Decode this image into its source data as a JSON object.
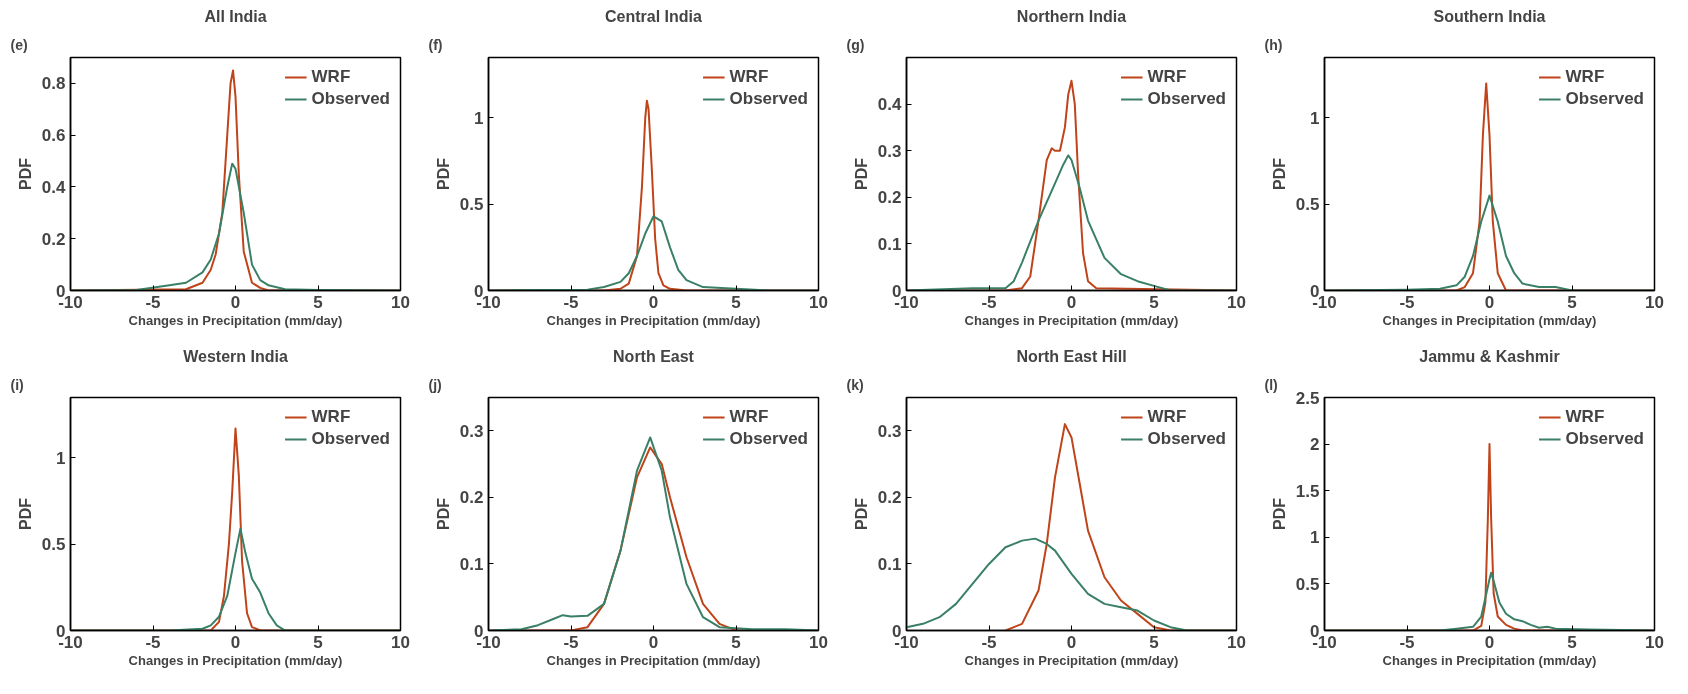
{
  "chart_data": [
    {
      "type": "line",
      "title": "All India",
      "xlabel": "Changes in Precipitation (mm/day)",
      "ylabel": "PDF",
      "annotations": [
        "(e)"
      ],
      "xlim": [
        -10,
        10
      ],
      "xticks": [
        -10,
        -5,
        0,
        5,
        10
      ],
      "ylim": [
        0,
        0.9
      ],
      "yticks": [
        0,
        0.2,
        0.4,
        0.6,
        0.8
      ],
      "grid": false,
      "legend": "top right",
      "series": [
        {
          "name": "WRF",
          "color": "#c0441a",
          "x": [
            -10,
            -3,
            -2,
            -1.5,
            -1.2,
            -0.8,
            -0.5,
            -0.3,
            -0.15,
            0,
            0.2,
            0.5,
            1,
            1.5,
            2,
            3,
            10
          ],
          "values": [
            0,
            0.005,
            0.03,
            0.08,
            0.14,
            0.3,
            0.6,
            0.8,
            0.85,
            0.75,
            0.45,
            0.15,
            0.03,
            0.01,
            0,
            0,
            0
          ]
        },
        {
          "name": "Observed",
          "color": "#3a8066",
          "x": [
            -10,
            -6,
            -4,
            -3,
            -2,
            -1.5,
            -1,
            -0.5,
            -0.2,
            0,
            0.5,
            1,
            1.5,
            2,
            3,
            5,
            10
          ],
          "values": [
            0,
            0.002,
            0.02,
            0.03,
            0.07,
            0.12,
            0.22,
            0.4,
            0.49,
            0.47,
            0.3,
            0.1,
            0.04,
            0.02,
            0.005,
            0.002,
            0
          ]
        }
      ]
    },
    {
      "type": "line",
      "title": "Central India",
      "xlabel": "Changes in Precipitation (mm/day)",
      "ylabel": "PDF",
      "annotations": [
        "(f)"
      ],
      "xlim": [
        -10,
        10
      ],
      "xticks": [
        -10,
        -5,
        0,
        5,
        10
      ],
      "ylim": [
        0,
        1.35
      ],
      "yticks": [
        0,
        0.5,
        1
      ],
      "grid": false,
      "legend": "top right",
      "series": [
        {
          "name": "WRF",
          "color": "#c0441a",
          "x": [
            -10,
            -3,
            -2,
            -1.5,
            -1,
            -0.7,
            -0.5,
            -0.4,
            -0.3,
            -0.1,
            0.1,
            0.3,
            0.6,
            1,
            2,
            10
          ],
          "values": [
            0,
            0,
            0.01,
            0.04,
            0.2,
            0.6,
            1.0,
            1.1,
            1.05,
            0.7,
            0.3,
            0.1,
            0.03,
            0.01,
            0,
            0
          ]
        },
        {
          "name": "Observed",
          "color": "#3a8066",
          "x": [
            -10,
            -4,
            -3,
            -2,
            -1.5,
            -1,
            -0.5,
            0,
            0.5,
            1,
            1.5,
            2,
            3,
            5,
            7,
            10
          ],
          "values": [
            0,
            0.005,
            0.02,
            0.05,
            0.1,
            0.2,
            0.33,
            0.43,
            0.4,
            0.25,
            0.12,
            0.06,
            0.02,
            0.01,
            0,
            0
          ]
        }
      ]
    },
    {
      "type": "line",
      "title": "Northern India",
      "xlabel": "Changes in Precipitation (mm/day)",
      "ylabel": "PDF",
      "annotations": [
        "(g)"
      ],
      "xlim": [
        -10,
        10
      ],
      "xticks": [
        -10,
        -5,
        0,
        5,
        10
      ],
      "ylim": [
        0,
        0.5
      ],
      "yticks": [
        0,
        0.1,
        0.2,
        0.3,
        0.4
      ],
      "grid": false,
      "legend": "top right",
      "series": [
        {
          "name": "WRF",
          "color": "#c0441a",
          "x": [
            -10,
            -4,
            -3,
            -2.5,
            -2,
            -1.5,
            -1.2,
            -1,
            -0.7,
            -0.4,
            -0.2,
            0,
            0.2,
            0.4,
            0.7,
            1,
            1.5,
            10
          ],
          "values": [
            0,
            0,
            0.005,
            0.03,
            0.15,
            0.28,
            0.305,
            0.3,
            0.3,
            0.35,
            0.42,
            0.45,
            0.4,
            0.25,
            0.08,
            0.02,
            0.005,
            0
          ]
        },
        {
          "name": "Observed",
          "color": "#3a8066",
          "x": [
            -10,
            -6,
            -4,
            -3.5,
            -3,
            -2,
            -1,
            -0.5,
            -0.2,
            0,
            0.5,
            1,
            2,
            3,
            4,
            5,
            6,
            10
          ],
          "values": [
            0,
            0.005,
            0.005,
            0.02,
            0.06,
            0.15,
            0.23,
            0.27,
            0.29,
            0.28,
            0.22,
            0.15,
            0.07,
            0.035,
            0.02,
            0.01,
            0,
            0
          ]
        }
      ]
    },
    {
      "type": "line",
      "title": "Southern India",
      "xlabel": "Changes in Precipitation (mm/day)",
      "ylabel": "PDF",
      "annotations": [
        "(h)"
      ],
      "xlim": [
        -10,
        10
      ],
      "xticks": [
        -10,
        -5,
        0,
        5,
        10
      ],
      "ylim": [
        0,
        1.35
      ],
      "yticks": [
        0,
        0.5,
        1
      ],
      "grid": false,
      "legend": "top right",
      "series": [
        {
          "name": "WRF",
          "color": "#c0441a",
          "x": [
            -10,
            -2,
            -1.5,
            -1,
            -0.6,
            -0.4,
            -0.2,
            0,
            0.2,
            0.5,
            1,
            10
          ],
          "values": [
            0,
            0,
            0.02,
            0.1,
            0.4,
            0.9,
            1.2,
            0.9,
            0.4,
            0.1,
            0,
            0
          ]
        },
        {
          "name": "Observed",
          "color": "#3a8066",
          "x": [
            -10,
            -5,
            -3,
            -2,
            -1.5,
            -1,
            -0.5,
            0,
            0.5,
            1,
            1.5,
            2,
            3,
            4,
            5,
            10
          ],
          "values": [
            0,
            0.005,
            0.01,
            0.03,
            0.08,
            0.2,
            0.4,
            0.55,
            0.4,
            0.2,
            0.1,
            0.04,
            0.02,
            0.02,
            0,
            0
          ]
        }
      ]
    },
    {
      "type": "line",
      "title": "Western India",
      "xlabel": "Changes in Precipitation (mm/day)",
      "ylabel": "PDF",
      "annotations": [
        "(i)"
      ],
      "xlim": [
        -10,
        10
      ],
      "xticks": [
        -10,
        -5,
        0,
        5,
        10
      ],
      "ylim": [
        0,
        1.35
      ],
      "yticks": [
        0,
        0.5,
        1
      ],
      "grid": false,
      "legend": "top right",
      "series": [
        {
          "name": "WRF",
          "color": "#c0441a",
          "x": [
            -10,
            -1.5,
            -1,
            -0.7,
            -0.4,
            -0.2,
            0,
            0.2,
            0.4,
            0.7,
            1,
            1.5,
            10
          ],
          "values": [
            0,
            0,
            0.05,
            0.2,
            0.5,
            0.8,
            1.17,
            0.9,
            0.4,
            0.1,
            0.02,
            0,
            0
          ]
        },
        {
          "name": "Observed",
          "color": "#3a8066",
          "x": [
            -10,
            -4,
            -2,
            -1.5,
            -1,
            -0.5,
            0,
            0.3,
            0.6,
            1,
            1.5,
            2,
            2.5,
            3,
            10
          ],
          "values": [
            0,
            0,
            0.01,
            0.03,
            0.08,
            0.2,
            0.45,
            0.59,
            0.45,
            0.3,
            0.22,
            0.1,
            0.03,
            0,
            0
          ]
        }
      ]
    },
    {
      "type": "line",
      "title": "North East",
      "xlabel": "Changes in Precipitation (mm/day)",
      "ylabel": "PDF",
      "annotations": [
        "(j)"
      ],
      "xlim": [
        -10,
        10
      ],
      "xticks": [
        -10,
        -5,
        0,
        5,
        10
      ],
      "ylim": [
        0,
        0.35
      ],
      "yticks": [
        0,
        0.1,
        0.2,
        0.3
      ],
      "grid": false,
      "legend": "top right",
      "series": [
        {
          "name": "WRF",
          "color": "#c0441a",
          "x": [
            -10,
            -5,
            -4,
            -3,
            -2,
            -1,
            -0.2,
            0.5,
            1,
            2,
            3,
            4,
            5,
            10
          ],
          "values": [
            0,
            0,
            0.005,
            0.04,
            0.12,
            0.23,
            0.275,
            0.25,
            0.2,
            0.11,
            0.04,
            0.01,
            0,
            0
          ]
        },
        {
          "name": "Observed",
          "color": "#3a8066",
          "x": [
            -10,
            -8,
            -7,
            -6,
            -5.5,
            -5,
            -4,
            -3,
            -2,
            -1,
            -0.2,
            0.5,
            1,
            2,
            3,
            4,
            6,
            8,
            10
          ],
          "values": [
            0,
            0.002,
            0.008,
            0.018,
            0.023,
            0.021,
            0.022,
            0.04,
            0.12,
            0.24,
            0.29,
            0.24,
            0.17,
            0.07,
            0.02,
            0.005,
            0.002,
            0.002,
            0
          ]
        }
      ]
    },
    {
      "type": "line",
      "title": "North East Hill",
      "xlabel": "Changes in Precipitation (mm/day)",
      "ylabel": "PDF",
      "annotations": [
        "(k)"
      ],
      "xlim": [
        -10,
        10
      ],
      "xticks": [
        -10,
        -5,
        0,
        5,
        10
      ],
      "ylim": [
        0,
        0.35
      ],
      "yticks": [
        0,
        0.1,
        0.2,
        0.3
      ],
      "grid": false,
      "legend": "top right",
      "series": [
        {
          "name": "WRF",
          "color": "#c0441a",
          "x": [
            -4,
            -3,
            -2,
            -1.5,
            -1,
            -0.4,
            0,
            0.5,
            1,
            2,
            3,
            4,
            5,
            6,
            10
          ],
          "values": [
            0,
            0.01,
            0.06,
            0.13,
            0.23,
            0.31,
            0.29,
            0.22,
            0.15,
            0.08,
            0.045,
            0.025,
            0.005,
            0,
            0
          ]
        },
        {
          "name": "Observed",
          "color": "#3a8066",
          "x": [
            -10,
            -9,
            -8,
            -7,
            -6,
            -5,
            -4,
            -3,
            -2.2,
            -1.5,
            -1,
            0,
            1,
            2,
            3,
            4,
            5,
            6,
            7,
            10
          ],
          "values": [
            0.005,
            0.01,
            0.02,
            0.04,
            0.07,
            0.1,
            0.125,
            0.135,
            0.138,
            0.13,
            0.12,
            0.085,
            0.055,
            0.04,
            0.035,
            0.03,
            0.015,
            0.005,
            0,
            0
          ]
        }
      ]
    },
    {
      "type": "line",
      "title": "Jammu & Kashmir",
      "xlabel": "Changes in Precipitation (mm/day)",
      "ylabel": "PDF",
      "annotations": [
        "(l)"
      ],
      "xlim": [
        -10,
        10
      ],
      "xticks": [
        -10,
        -5,
        0,
        5,
        10
      ],
      "ylim": [
        0,
        2.5
      ],
      "yticks": [
        0,
        0.5,
        1,
        1.5,
        2,
        2.5
      ],
      "grid": false,
      "legend": "top right",
      "series": [
        {
          "name": "WRF",
          "color": "#c0441a",
          "x": [
            -10,
            -1,
            -0.5,
            -0.25,
            -0.1,
            0,
            0.1,
            0.25,
            0.5,
            1,
            1.5,
            2,
            10
          ],
          "values": [
            0,
            0,
            0.05,
            0.3,
            1.2,
            2.0,
            1.2,
            0.4,
            0.15,
            0.06,
            0.02,
            0,
            0
          ]
        },
        {
          "name": "Observed",
          "color": "#3a8066",
          "x": [
            -10,
            -3,
            -2,
            -1,
            -0.5,
            0,
            0.1,
            0.3,
            0.6,
            1,
            1.5,
            2,
            2.5,
            3,
            3.5,
            4,
            6,
            10
          ],
          "values": [
            0,
            0,
            0.02,
            0.04,
            0.15,
            0.55,
            0.62,
            0.5,
            0.3,
            0.18,
            0.12,
            0.1,
            0.06,
            0.03,
            0.04,
            0.02,
            0.01,
            0
          ]
        }
      ]
    }
  ]
}
